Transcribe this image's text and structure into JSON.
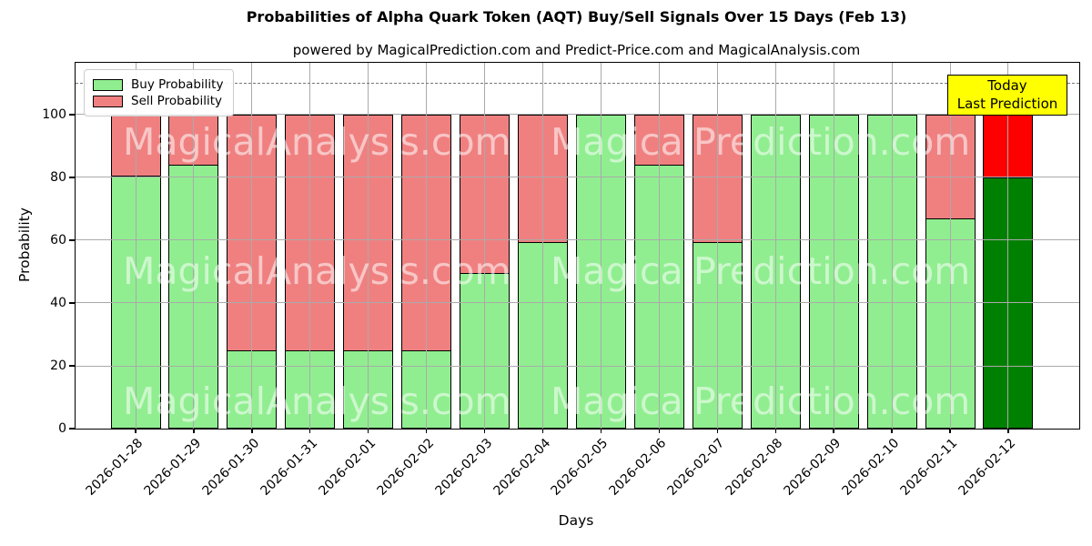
{
  "chart_data": {
    "type": "bar",
    "stacked": true,
    "title": "Probabilities of Alpha Quark Token (AQT) Buy/Sell Signals Over 15 Days (Feb 13)",
    "subtitle": "powered by MagicalPrediction.com and Predict-Price.com and MagicalAnalysis.com",
    "xlabel": "Days",
    "ylabel": "Probability",
    "categories": [
      "2026-01-28",
      "2026-01-29",
      "2026-01-30",
      "2026-01-31",
      "2026-02-01",
      "2026-02-02",
      "2026-02-03",
      "2026-02-04",
      "2026-02-05",
      "2026-02-06",
      "2026-02-07",
      "2026-02-08",
      "2026-02-09",
      "2026-02-10",
      "2026-02-11",
      "2026-02-12"
    ],
    "series": [
      {
        "name": "Buy Probability",
        "color": "#90ee90",
        "values": [
          80.5,
          84,
          25,
          25,
          25,
          25,
          49.5,
          59.5,
          100,
          84,
          59.5,
          100,
          100,
          100,
          67,
          80
        ]
      },
      {
        "name": "Sell Probability",
        "color": "#f08080",
        "values": [
          19.5,
          16,
          75,
          75,
          75,
          75,
          50.5,
          40.5,
          0,
          16,
          40.5,
          0,
          0,
          0,
          33,
          20
        ]
      }
    ],
    "today_bar": {
      "index": 15,
      "buy_color": "#008000",
      "sell_color": "#ff0000"
    },
    "ylim": [
      0,
      116.5
    ],
    "yticks": [
      0,
      20,
      40,
      60,
      80,
      100
    ],
    "grid": true,
    "grid_color": "#aaaaaa",
    "dashed_line_y": 110,
    "legend_position": "upper-left",
    "annotation": {
      "line1": "Today",
      "line2": "Last Prediction",
      "bg_color": "#ffff00"
    },
    "watermarks": {
      "left": "MagicalAnalysis.com",
      "right": "MagicalPrediction.com"
    }
  }
}
